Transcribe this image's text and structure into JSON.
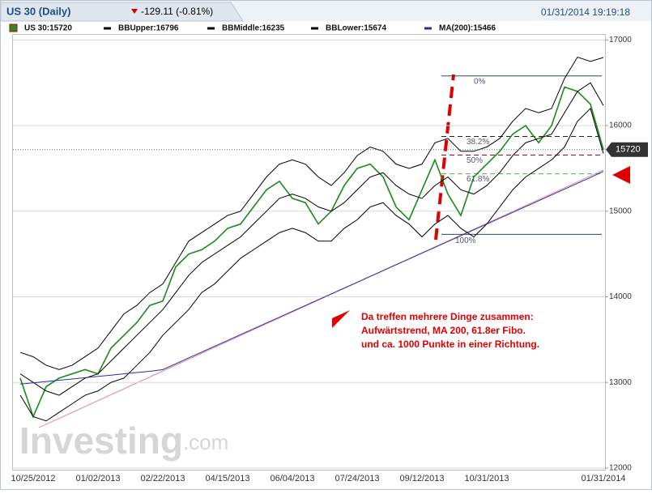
{
  "header": {
    "title": "US 30 (Daily)",
    "change": "-129.11 (-0.81%)",
    "timestamp": "01/31/2014 19:19:18"
  },
  "chart_data": {
    "type": "line",
    "categories": [
      null,
      "10/25/2012",
      null,
      null,
      null,
      null,
      "01/02/2013",
      null,
      null,
      null,
      null,
      "02/22/2013",
      null,
      null,
      null,
      null,
      "04/15/2013",
      null,
      null,
      null,
      null,
      "06/04/2013",
      null,
      null,
      null,
      null,
      "07/24/2013",
      null,
      null,
      null,
      null,
      "09/12/2013",
      null,
      null,
      null,
      null,
      "10/31/2013",
      null,
      null,
      null,
      null,
      null,
      null,
      null,
      null,
      "01/31/2014"
    ],
    "series": [
      {
        "name": "US 30:15720",
        "color": "#1a8a1a",
        "values": [
          13050,
          12600,
          12950,
          13050,
          13100,
          13150,
          13100,
          13400,
          13550,
          13700,
          13900,
          13950,
          14350,
          14500,
          14550,
          14650,
          14800,
          14850,
          15050,
          15250,
          15350,
          15150,
          15100,
          14850,
          15000,
          15300,
          15500,
          15550,
          15400,
          15050,
          14900,
          15250,
          15600,
          15200,
          14950,
          15400,
          15550,
          15700,
          15900,
          16000,
          15800,
          16000,
          16450,
          16400,
          16250,
          15720
        ]
      },
      {
        "name": "BBUpper:16796",
        "color": "#000000",
        "values": [
          13350,
          13300,
          13200,
          13150,
          13200,
          13300,
          13400,
          13600,
          13800,
          13900,
          14050,
          14150,
          14400,
          14650,
          14750,
          14850,
          14950,
          15000,
          15200,
          15400,
          15550,
          15600,
          15550,
          15400,
          15300,
          15450,
          15650,
          15750,
          15700,
          15550,
          15500,
          15550,
          15800,
          15850,
          15700,
          15700,
          15750,
          15850,
          16050,
          16200,
          16150,
          16200,
          16550,
          16800,
          16750,
          16796
        ]
      },
      {
        "name": "BBMiddle:16235",
        "color": "#000000",
        "values": [
          13100,
          13000,
          12900,
          12850,
          12950,
          13050,
          13100,
          13250,
          13400,
          13550,
          13700,
          13850,
          14050,
          14250,
          14400,
          14500,
          14600,
          14700,
          14850,
          15000,
          15150,
          15200,
          15150,
          15050,
          15000,
          15100,
          15250,
          15400,
          15450,
          15300,
          15200,
          15150,
          15300,
          15400,
          15250,
          15200,
          15300,
          15450,
          15650,
          15800,
          15850,
          15900,
          16150,
          16400,
          16500,
          16235
        ]
      },
      {
        "name": "BBLower:15674",
        "color": "#000000",
        "values": [
          12850,
          12600,
          12550,
          12650,
          12750,
          12850,
          12900,
          13000,
          13050,
          13200,
          13350,
          13550,
          13700,
          13850,
          14050,
          14150,
          14300,
          14450,
          14550,
          14650,
          14750,
          14800,
          14750,
          14650,
          14650,
          14800,
          14900,
          15050,
          15100,
          14950,
          14850,
          14700,
          14850,
          14950,
          14800,
          14700,
          14850,
          15050,
          15250,
          15400,
          15500,
          15600,
          15750,
          16050,
          16200,
          15674
        ]
      },
      {
        "name": "MA(200):15466",
        "color": "#2b2bb0",
        "values": [
          12980,
          12995,
          13010,
          13025,
          13040,
          13055,
          13070,
          13085,
          13100,
          13115,
          13130,
          13150,
          13218,
          13286,
          13354,
          13422,
          13490,
          13558,
          13626,
          13694,
          13762,
          13830,
          13898,
          13966,
          14034,
          14102,
          14170,
          14238,
          14306,
          14374,
          14442,
          14510,
          14578,
          14646,
          14714,
          14782,
          14850,
          14918,
          14986,
          15054,
          15122,
          15190,
          15258,
          15326,
          15394,
          15466
        ]
      }
    ],
    "ylim": [
      11980,
      17070
    ],
    "yticks": [
      12000,
      13000,
      14000,
      15000,
      16000,
      17000
    ],
    "grid": true,
    "fibonacci": [
      {
        "label": "0%",
        "value": 16580
      },
      {
        "label": "38.2%",
        "value": 15873
      },
      {
        "label": "50%",
        "value": 15655
      },
      {
        "label": "61.8%",
        "value": 15437
      },
      {
        "label": "100%",
        "value": 14730
      }
    ],
    "annotation": [
      "Da treffen mehrere Dinge zusammen:",
      "Aufwärtstrend, MA 200,  61.8er Fibo.",
      "und ca. 1000 Punkte in einer Richtung."
    ],
    "watermark": {
      "brand": "Investing",
      "suffix": ".com"
    }
  }
}
